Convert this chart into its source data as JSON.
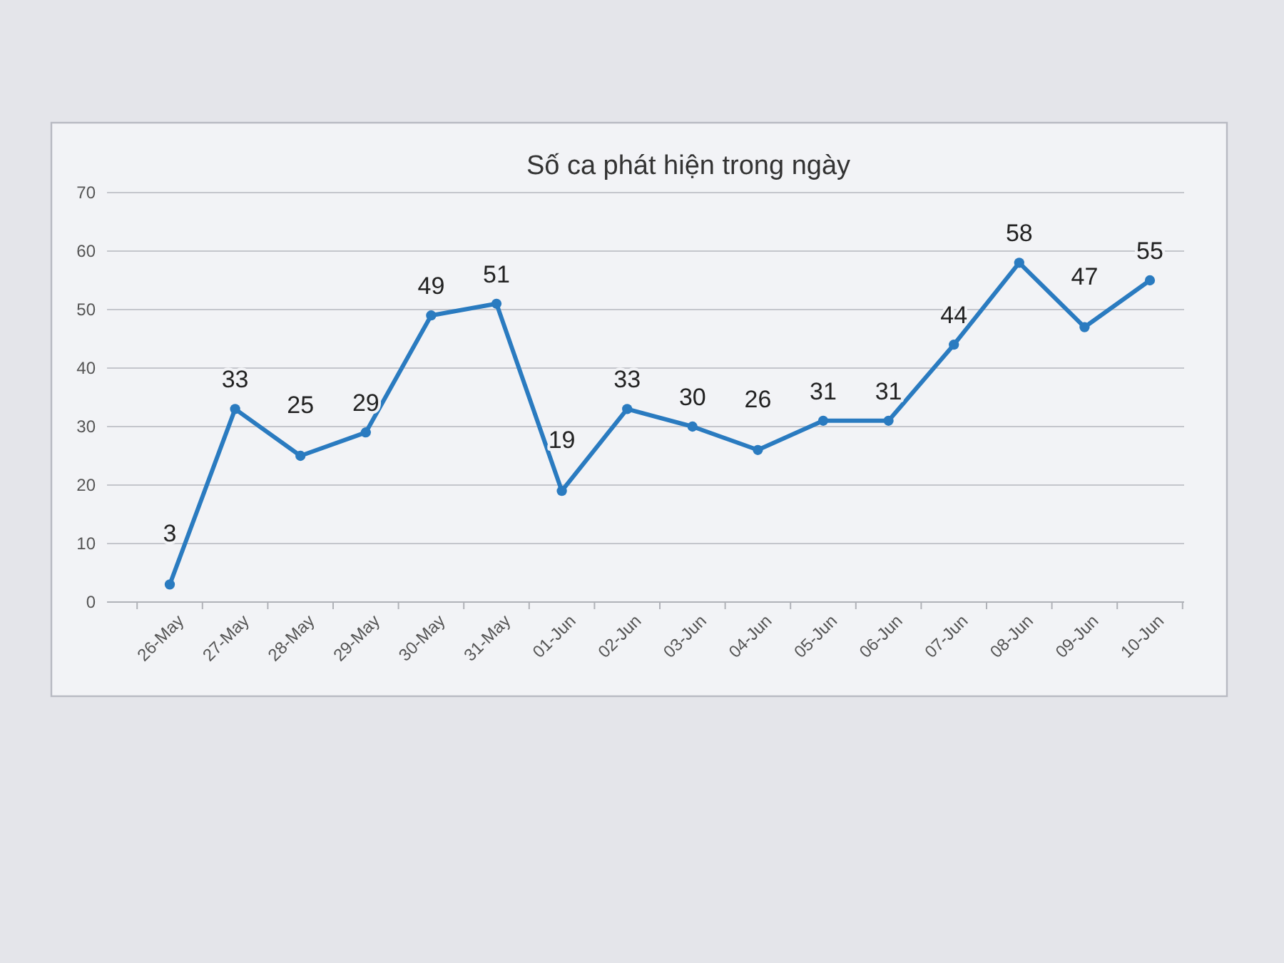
{
  "chart_data": {
    "type": "line",
    "title": "Số ca phát hiện trong ngày",
    "categories": [
      "26-May",
      "27-May",
      "28-May",
      "29-May",
      "30-May",
      "31-May",
      "01-Jun",
      "02-Jun",
      "03-Jun",
      "04-Jun",
      "05-Jun",
      "06-Jun",
      "07-Jun",
      "08-Jun",
      "09-Jun",
      "10-Jun"
    ],
    "series": [
      {
        "color": "#2a7bc0",
        "values": [
          3,
          33,
          25,
          29,
          49,
          51,
          19,
          33,
          30,
          26,
          31,
          31,
          44,
          58,
          47,
          55
        ]
      }
    ],
    "ylim": [
      0,
      70
    ],
    "yticks": [
      0,
      10,
      20,
      30,
      40,
      50,
      60,
      70
    ],
    "grid": "y",
    "marker": "circle",
    "line_style": "solid",
    "data_labels": true
  }
}
